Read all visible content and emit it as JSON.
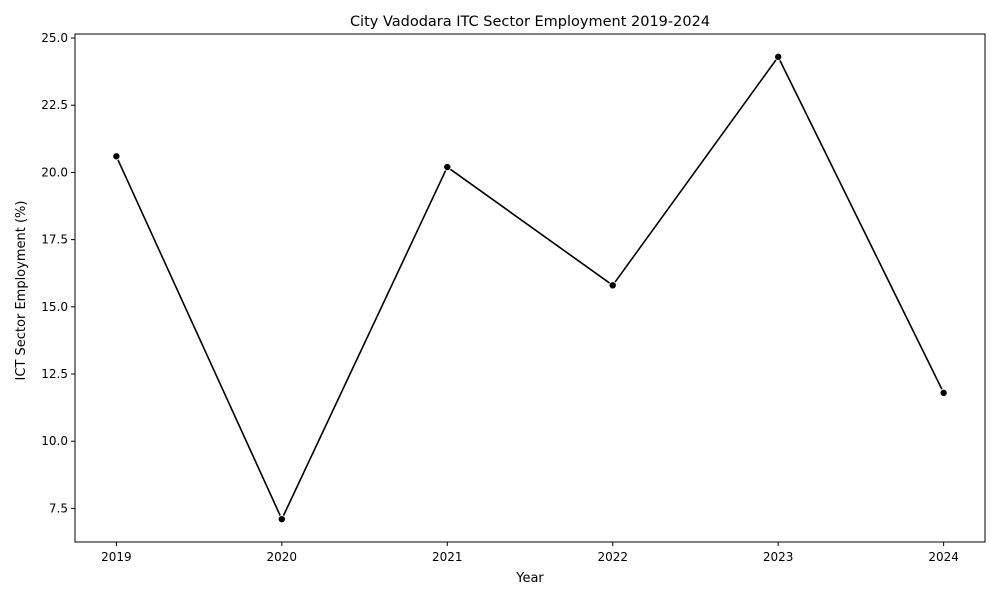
{
  "chart_data": {
    "type": "line",
    "title": "City Vadodara ITC Sector Employment 2019-2024",
    "xlabel": "Year",
    "ylabel": "ICT Sector Employment (%)",
    "x": [
      2019,
      2020,
      2021,
      2022,
      2023,
      2024
    ],
    "x_tick_labels": [
      "2019",
      "2020",
      "2021",
      "2022",
      "2023",
      "2024"
    ],
    "series": [
      {
        "values": [
          20.6,
          7.1,
          20.2,
          15.8,
          24.3,
          11.8
        ]
      }
    ],
    "xlim": [
      2018.75,
      2024.25
    ],
    "ylim": [
      6.25,
      25.15
    ],
    "y_ticks": [
      7.5,
      10.0,
      12.5,
      15.0,
      17.5,
      20.0,
      22.5,
      25.0
    ],
    "y_tick_labels": [
      "7.5",
      "10.0",
      "12.5",
      "15.0",
      "17.5",
      "20.0",
      "22.5",
      "25.0"
    ],
    "grid": false,
    "legend": "none",
    "colors": {
      "line": "#000000",
      "marker": "#000000",
      "marker_edge": "#ffffff",
      "axes": "#000000"
    }
  }
}
